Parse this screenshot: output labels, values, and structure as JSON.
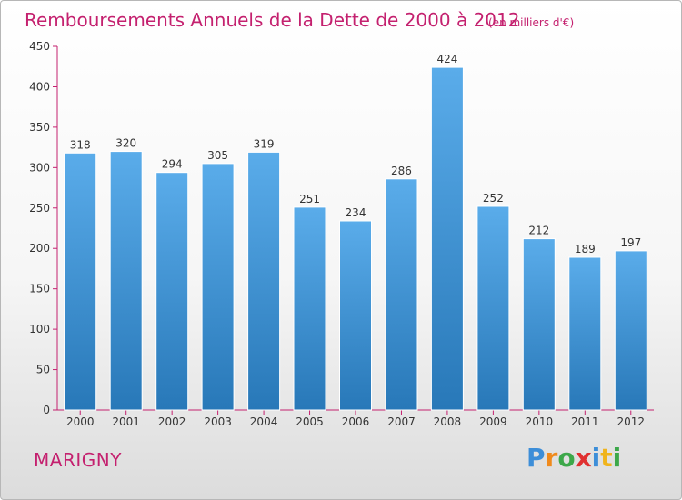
{
  "chart_data": {
    "type": "bar",
    "title": "Remboursements Annuels de la Dette de 2000 à 2012",
    "subtitle": "(en milliers d'€)",
    "categories": [
      "2000",
      "2001",
      "2002",
      "2003",
      "2004",
      "2005",
      "2006",
      "2007",
      "2008",
      "2009",
      "2010",
      "2011",
      "2012"
    ],
    "values": [
      318,
      320,
      294,
      305,
      319,
      251,
      234,
      286,
      424,
      252,
      212,
      189,
      197
    ],
    "yticks": [
      0,
      50,
      100,
      150,
      200,
      250,
      300,
      350,
      400,
      450
    ],
    "ylim": [
      0,
      450
    ],
    "grid": false,
    "bar_color_top": "#5aacea",
    "bar_color_bottom": "#2878b8"
  },
  "commune": "MARIGNY",
  "logo": {
    "letters": [
      "P",
      "r",
      "o",
      "x",
      "i",
      "t",
      "i"
    ],
    "colors": [
      "#3d8ed8",
      "#f08a1c",
      "#3da84a",
      "#e03030",
      "#3d8ed8",
      "#f0b41c",
      "#3da84a"
    ]
  },
  "colors": {
    "title": "#c4216f",
    "axis": "#c4216f"
  }
}
